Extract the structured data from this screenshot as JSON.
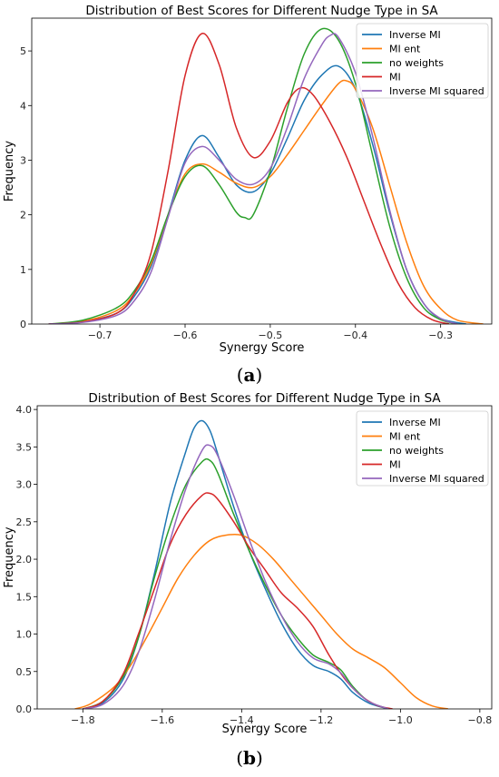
{
  "chart_data": [
    {
      "type": "line",
      "title": "Distribution of Best Scores for Different Nudge Type in SA",
      "xlabel": "Synergy Score",
      "ylabel": "Frequency",
      "xlim": [
        -0.78,
        -0.24
      ],
      "ylim": [
        0,
        5.6
      ],
      "xticks": [
        -0.7,
        -0.6,
        -0.5,
        -0.4,
        -0.3
      ],
      "xtick_labels": [
        "−0.7",
        "−0.6",
        "−0.5",
        "−0.4",
        "−0.3"
      ],
      "yticks": [
        0,
        1,
        2,
        3,
        4,
        5
      ],
      "ytick_labels": [
        "0",
        "1",
        "2",
        "3",
        "4",
        "5"
      ],
      "legend_position": "top-right",
      "panel_label": {
        "open": "(",
        "letter": "a",
        "close": ")"
      },
      "series": [
        {
          "name": "Inverse MI",
          "color": "#1f77b4",
          "points": [
            [
              -0.76,
              0
            ],
            [
              -0.72,
              0.04
            ],
            [
              -0.68,
              0.2
            ],
            [
              -0.66,
              0.5
            ],
            [
              -0.64,
              1.05
            ],
            [
              -0.62,
              2.0
            ],
            [
              -0.6,
              3.0
            ],
            [
              -0.58,
              3.45
            ],
            [
              -0.56,
              3.05
            ],
            [
              -0.54,
              2.55
            ],
            [
              -0.52,
              2.42
            ],
            [
              -0.5,
              2.75
            ],
            [
              -0.48,
              3.4
            ],
            [
              -0.46,
              4.1
            ],
            [
              -0.44,
              4.55
            ],
            [
              -0.42,
              4.72
            ],
            [
              -0.4,
              4.3
            ],
            [
              -0.38,
              3.3
            ],
            [
              -0.36,
              2.05
            ],
            [
              -0.34,
              1.0
            ],
            [
              -0.32,
              0.38
            ],
            [
              -0.3,
              0.1
            ],
            [
              -0.27,
              0
            ]
          ]
        },
        {
          "name": "MI ent",
          "color": "#ff7f0e",
          "points": [
            [
              -0.76,
              0
            ],
            [
              -0.72,
              0.05
            ],
            [
              -0.68,
              0.25
            ],
            [
              -0.66,
              0.55
            ],
            [
              -0.64,
              1.1
            ],
            [
              -0.62,
              2.0
            ],
            [
              -0.6,
              2.75
            ],
            [
              -0.58,
              2.93
            ],
            [
              -0.56,
              2.78
            ],
            [
              -0.54,
              2.58
            ],
            [
              -0.52,
              2.5
            ],
            [
              -0.5,
              2.7
            ],
            [
              -0.48,
              3.1
            ],
            [
              -0.46,
              3.55
            ],
            [
              -0.44,
              4.0
            ],
            [
              -0.42,
              4.4
            ],
            [
              -0.41,
              4.45
            ],
            [
              -0.4,
              4.3
            ],
            [
              -0.38,
              3.6
            ],
            [
              -0.36,
              2.55
            ],
            [
              -0.34,
              1.5
            ],
            [
              -0.32,
              0.7
            ],
            [
              -0.3,
              0.28
            ],
            [
              -0.28,
              0.07
            ],
            [
              -0.25,
              0
            ]
          ]
        },
        {
          "name": "no weights",
          "color": "#2ca02c",
          "points": [
            [
              -0.76,
              0
            ],
            [
              -0.72,
              0.07
            ],
            [
              -0.68,
              0.3
            ],
            [
              -0.66,
              0.6
            ],
            [
              -0.64,
              1.15
            ],
            [
              -0.62,
              2.0
            ],
            [
              -0.6,
              2.7
            ],
            [
              -0.58,
              2.9
            ],
            [
              -0.56,
              2.55
            ],
            [
              -0.54,
              2.05
            ],
            [
              -0.53,
              1.95
            ],
            [
              -0.52,
              2.0
            ],
            [
              -0.5,
              2.8
            ],
            [
              -0.48,
              3.95
            ],
            [
              -0.46,
              4.95
            ],
            [
              -0.44,
              5.4
            ],
            [
              -0.42,
              5.2
            ],
            [
              -0.4,
              4.4
            ],
            [
              -0.38,
              3.1
            ],
            [
              -0.36,
              1.8
            ],
            [
              -0.34,
              0.85
            ],
            [
              -0.32,
              0.3
            ],
            [
              -0.3,
              0.08
            ],
            [
              -0.28,
              0
            ]
          ]
        },
        {
          "name": "MI",
          "color": "#d62728",
          "points": [
            [
              -0.76,
              0
            ],
            [
              -0.72,
              0.04
            ],
            [
              -0.68,
              0.2
            ],
            [
              -0.66,
              0.55
            ],
            [
              -0.64,
              1.3
            ],
            [
              -0.62,
              2.8
            ],
            [
              -0.6,
              4.55
            ],
            [
              -0.58,
              5.32
            ],
            [
              -0.56,
              4.75
            ],
            [
              -0.54,
              3.6
            ],
            [
              -0.52,
              3.05
            ],
            [
              -0.5,
              3.35
            ],
            [
              -0.48,
              4.05
            ],
            [
              -0.465,
              4.32
            ],
            [
              -0.45,
              4.2
            ],
            [
              -0.43,
              3.7
            ],
            [
              -0.41,
              3.05
            ],
            [
              -0.39,
              2.25
            ],
            [
              -0.37,
              1.45
            ],
            [
              -0.35,
              0.75
            ],
            [
              -0.33,
              0.3
            ],
            [
              -0.31,
              0.08
            ],
            [
              -0.29,
              0
            ]
          ]
        },
        {
          "name": "Inverse MI squared",
          "color": "#9467bd",
          "points": [
            [
              -0.76,
              0
            ],
            [
              -0.72,
              0.03
            ],
            [
              -0.68,
              0.16
            ],
            [
              -0.66,
              0.42
            ],
            [
              -0.64,
              0.95
            ],
            [
              -0.62,
              1.95
            ],
            [
              -0.6,
              2.95
            ],
            [
              -0.58,
              3.25
            ],
            [
              -0.56,
              3.0
            ],
            [
              -0.54,
              2.65
            ],
            [
              -0.52,
              2.56
            ],
            [
              -0.5,
              2.85
            ],
            [
              -0.48,
              3.6
            ],
            [
              -0.46,
              4.5
            ],
            [
              -0.44,
              5.1
            ],
            [
              -0.43,
              5.28
            ],
            [
              -0.42,
              5.25
            ],
            [
              -0.4,
              4.6
            ],
            [
              -0.38,
              3.45
            ],
            [
              -0.36,
              2.1
            ],
            [
              -0.34,
              1.0
            ],
            [
              -0.32,
              0.38
            ],
            [
              -0.3,
              0.1
            ],
            [
              -0.28,
              0
            ]
          ]
        }
      ]
    },
    {
      "type": "line",
      "title": "Distribution of Best Scores for Different Nudge Type in SA",
      "xlabel": "Synergy Score",
      "ylabel": "Frequency",
      "xlim": [
        -1.915,
        -0.77
      ],
      "ylim": [
        0,
        4.05
      ],
      "xticks": [
        -1.8,
        -1.6,
        -1.4,
        -1.2,
        -1.0,
        -0.8
      ],
      "xtick_labels": [
        "−1.8",
        "−1.6",
        "−1.4",
        "−1.2",
        "−1.0",
        "−0.8"
      ],
      "yticks": [
        0,
        0.5,
        1.0,
        1.5,
        2.0,
        2.5,
        3.0,
        3.5,
        4.0
      ],
      "ytick_labels": [
        "0.0",
        "0.5",
        "1.0",
        "1.5",
        "2.0",
        "2.5",
        "3.0",
        "3.5",
        "4.0"
      ],
      "legend_position": "top-right",
      "panel_label": {
        "open": "(",
        "letter": "b",
        "close": ")"
      },
      "series": [
        {
          "name": "Inverse MI",
          "color": "#1f77b4",
          "points": [
            [
              -1.8,
              0
            ],
            [
              -1.75,
              0.08
            ],
            [
              -1.7,
              0.38
            ],
            [
              -1.66,
              0.95
            ],
            [
              -1.62,
              1.8
            ],
            [
              -1.58,
              2.75
            ],
            [
              -1.54,
              3.45
            ],
            [
              -1.52,
              3.75
            ],
            [
              -1.5,
              3.85
            ],
            [
              -1.48,
              3.72
            ],
            [
              -1.46,
              3.4
            ],
            [
              -1.42,
              2.7
            ],
            [
              -1.38,
              2.1
            ],
            [
              -1.34,
              1.6
            ],
            [
              -1.3,
              1.15
            ],
            [
              -1.26,
              0.8
            ],
            [
              -1.22,
              0.58
            ],
            [
              -1.18,
              0.5
            ],
            [
              -1.15,
              0.4
            ],
            [
              -1.12,
              0.22
            ],
            [
              -1.08,
              0.08
            ],
            [
              -1.03,
              0
            ]
          ]
        },
        {
          "name": "MI ent",
          "color": "#ff7f0e",
          "points": [
            [
              -1.82,
              0
            ],
            [
              -1.78,
              0.07
            ],
            [
              -1.72,
              0.3
            ],
            [
              -1.68,
              0.58
            ],
            [
              -1.64,
              0.95
            ],
            [
              -1.6,
              1.35
            ],
            [
              -1.56,
              1.75
            ],
            [
              -1.52,
              2.05
            ],
            [
              -1.48,
              2.25
            ],
            [
              -1.44,
              2.32
            ],
            [
              -1.4,
              2.32
            ],
            [
              -1.36,
              2.2
            ],
            [
              -1.32,
              2.0
            ],
            [
              -1.28,
              1.75
            ],
            [
              -1.24,
              1.5
            ],
            [
              -1.2,
              1.25
            ],
            [
              -1.16,
              1.0
            ],
            [
              -1.12,
              0.8
            ],
            [
              -1.08,
              0.68
            ],
            [
              -1.04,
              0.55
            ],
            [
              -1.0,
              0.35
            ],
            [
              -0.96,
              0.15
            ],
            [
              -0.92,
              0.04
            ],
            [
              -0.88,
              0
            ]
          ]
        },
        {
          "name": "no weights",
          "color": "#2ca02c",
          "points": [
            [
              -1.8,
              0
            ],
            [
              -1.75,
              0.1
            ],
            [
              -1.7,
              0.42
            ],
            [
              -1.66,
              0.95
            ],
            [
              -1.62,
              1.75
            ],
            [
              -1.58,
              2.45
            ],
            [
              -1.54,
              3.0
            ],
            [
              -1.5,
              3.3
            ],
            [
              -1.48,
              3.32
            ],
            [
              -1.46,
              3.15
            ],
            [
              -1.42,
              2.6
            ],
            [
              -1.38,
              2.1
            ],
            [
              -1.34,
              1.65
            ],
            [
              -1.3,
              1.25
            ],
            [
              -1.26,
              0.95
            ],
            [
              -1.22,
              0.72
            ],
            [
              -1.18,
              0.62
            ],
            [
              -1.15,
              0.52
            ],
            [
              -1.12,
              0.3
            ],
            [
              -1.08,
              0.1
            ],
            [
              -1.03,
              0
            ]
          ]
        },
        {
          "name": "MI",
          "color": "#d62728",
          "points": [
            [
              -1.8,
              0
            ],
            [
              -1.75,
              0.1
            ],
            [
              -1.7,
              0.45
            ],
            [
              -1.66,
              1.0
            ],
            [
              -1.62,
              1.6
            ],
            [
              -1.58,
              2.2
            ],
            [
              -1.54,
              2.6
            ],
            [
              -1.5,
              2.85
            ],
            [
              -1.48,
              2.88
            ],
            [
              -1.46,
              2.8
            ],
            [
              -1.42,
              2.5
            ],
            [
              -1.38,
              2.15
            ],
            [
              -1.34,
              1.85
            ],
            [
              -1.3,
              1.55
            ],
            [
              -1.26,
              1.35
            ],
            [
              -1.22,
              1.1
            ],
            [
              -1.18,
              0.72
            ],
            [
              -1.14,
              0.4
            ],
            [
              -1.1,
              0.18
            ],
            [
              -1.06,
              0.05
            ],
            [
              -1.02,
              0
            ]
          ]
        },
        {
          "name": "Inverse MI squared",
          "color": "#9467bd",
          "points": [
            [
              -1.8,
              0
            ],
            [
              -1.75,
              0.06
            ],
            [
              -1.7,
              0.3
            ],
            [
              -1.66,
              0.75
            ],
            [
              -1.62,
              1.45
            ],
            [
              -1.58,
              2.25
            ],
            [
              -1.54,
              2.95
            ],
            [
              -1.5,
              3.45
            ],
            [
              -1.48,
              3.52
            ],
            [
              -1.46,
              3.38
            ],
            [
              -1.42,
              2.85
            ],
            [
              -1.38,
              2.25
            ],
            [
              -1.34,
              1.7
            ],
            [
              -1.3,
              1.25
            ],
            [
              -1.26,
              0.9
            ],
            [
              -1.22,
              0.68
            ],
            [
              -1.18,
              0.6
            ],
            [
              -1.15,
              0.48
            ],
            [
              -1.12,
              0.28
            ],
            [
              -1.08,
              0.1
            ],
            [
              -1.03,
              0
            ]
          ]
        }
      ]
    }
  ]
}
